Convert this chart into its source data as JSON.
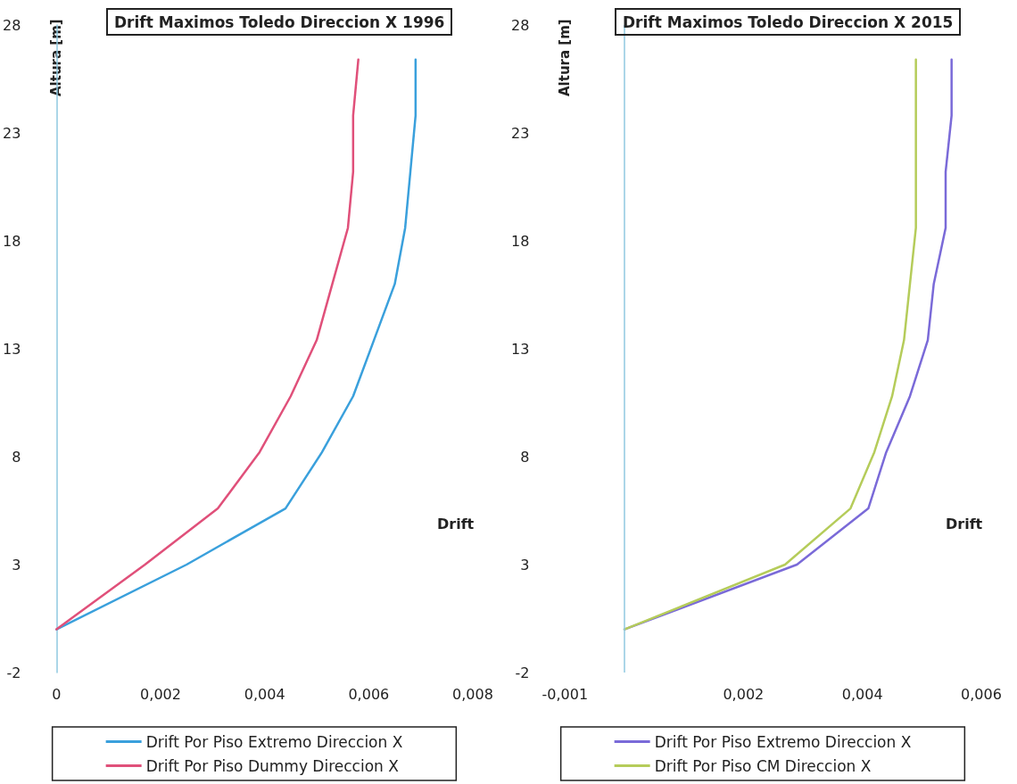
{
  "chart_data": [
    {
      "type": "line",
      "title": "Drift Maximos Toledo Direccion X 1996",
      "xlabel": "Drift",
      "ylabel": "Altura [m]",
      "legend": "bottom",
      "grid": false,
      "marker": "none",
      "line_style": "solid",
      "series": [
        {
          "name": "Drift Por Piso Extremo Direccion X",
          "color": "#3aa0dc",
          "x": [
            0,
            0.0025,
            0.0044,
            0.0051,
            0.0057,
            0.0061,
            0.0065,
            0.0067,
            0.0068,
            0.0069,
            0.0069
          ],
          "values": [
            0,
            3,
            5.6,
            8.2,
            10.8,
            13.4,
            16,
            18.6,
            21.2,
            23.8,
            26.4
          ]
        },
        {
          "name": "Drift Por Piso Dummy Direccion X",
          "color": "#e0507a",
          "x": [
            0,
            0.0017,
            0.0031,
            0.0039,
            0.0045,
            0.005,
            0.0053,
            0.0056,
            0.0057,
            0.0057,
            0.0058
          ],
          "values": [
            0,
            3,
            5.6,
            8.2,
            10.8,
            13.4,
            16,
            18.6,
            21.2,
            23.8,
            26.4
          ]
        }
      ],
      "xlim": [
        0,
        0.008
      ],
      "xticks": [
        {
          "value": 0,
          "label": "0"
        },
        {
          "value": 0.002,
          "label": "0,002"
        },
        {
          "value": 0.004,
          "label": "0,004"
        },
        {
          "value": 0.006,
          "label": "0,006"
        },
        {
          "value": 0.008,
          "label": "0,008"
        }
      ],
      "ylim": [
        -2,
        28
      ],
      "yticks": [
        -2,
        3,
        8,
        13,
        18,
        23,
        28
      ]
    },
    {
      "type": "line",
      "title": "Drift Maximos Toledo Direccion X 2015",
      "xlabel": "Drift",
      "ylabel": "Altura [m]",
      "legend": "bottom",
      "grid": false,
      "marker": "none",
      "line_style": "solid",
      "series": [
        {
          "name": "Drift Por Piso Extremo Direccion X",
          "color": "#7a6ad8",
          "x": [
            0,
            0.0029,
            0.0041,
            0.0044,
            0.0048,
            0.0051,
            0.0052,
            0.0054,
            0.0054,
            0.0055,
            0.0055
          ],
          "values": [
            0,
            3,
            5.6,
            8.2,
            10.8,
            13.4,
            16,
            18.6,
            21.2,
            23.8,
            26.4
          ]
        },
        {
          "name": "Drift Por Piso CM Direccion X",
          "color": "#b5cc5a",
          "x": [
            0,
            0.0027,
            0.0038,
            0.0042,
            0.0045,
            0.0047,
            0.0048,
            0.0049,
            0.0049,
            0.0049,
            0.0049
          ],
          "values": [
            0,
            3,
            5.6,
            8.2,
            10.8,
            13.4,
            16,
            18.6,
            21.2,
            23.8,
            26.4
          ]
        }
      ],
      "ref_lines": [
        {
          "axis": "x",
          "value": 0,
          "color": "#8fc8e0"
        }
      ],
      "xlim": [
        -0.001,
        0.006
      ],
      "xticks": [
        {
          "value": -0.001,
          "label": "-0,001"
        },
        {
          "value": 0.002,
          "label": "0,002"
        },
        {
          "value": 0.004,
          "label": "0,004"
        },
        {
          "value": 0.006,
          "label": "0,006"
        }
      ],
      "ylim": [
        -2,
        28
      ],
      "yticks": [
        -2,
        3,
        8,
        13,
        18,
        23,
        28
      ]
    }
  ]
}
